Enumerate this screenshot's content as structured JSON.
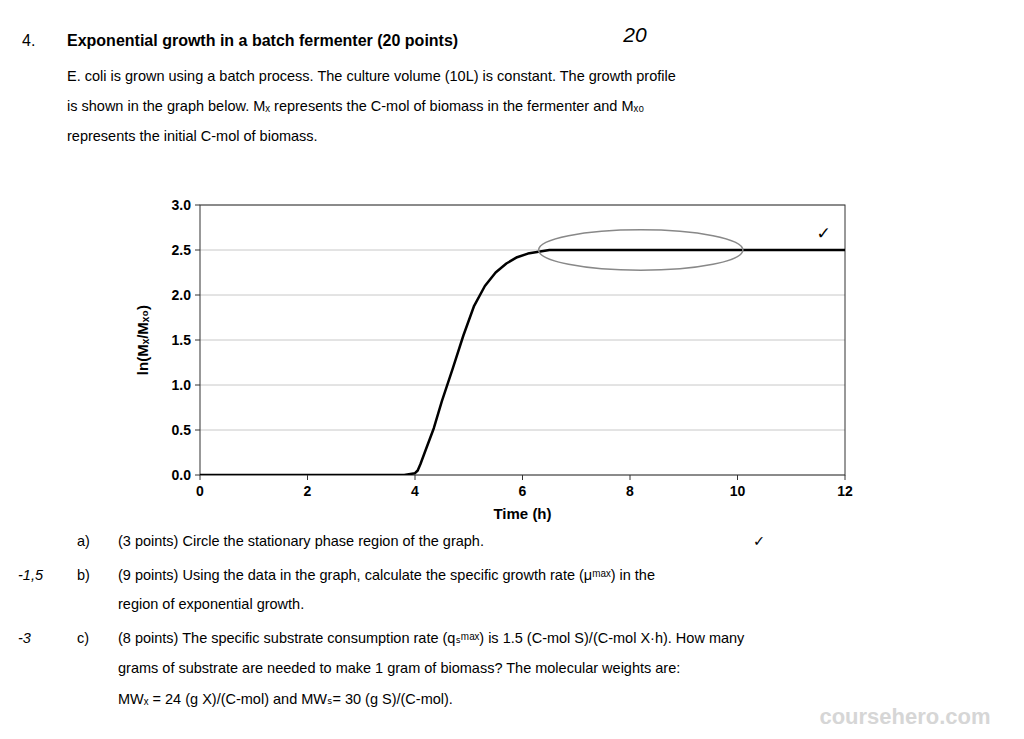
{
  "chart_data": {
    "type": "line",
    "title": "Exponential growth in a batch fermenter (20 points)",
    "xlabel": "Time (h)",
    "ylabel": "ln(Mₓ/Mₓ₀)",
    "x": [
      0,
      0.5,
      1.0,
      1.5,
      2.0,
      2.5,
      3.0,
      3.5,
      3.8,
      4.0,
      4.05,
      4.1,
      4.2,
      4.35,
      4.5,
      4.7,
      4.9,
      5.1,
      5.3,
      5.5,
      5.7,
      5.9,
      6.1,
      6.3,
      6.5,
      7.0,
      7.5,
      8.0,
      8.5,
      9.0,
      9.5,
      10.0,
      10.5,
      11.0,
      11.5,
      12.0
    ],
    "values": [
      0.0,
      0.0,
      0.0,
      0.0,
      0.0,
      0.0,
      0.0,
      0.0,
      0.0,
      0.02,
      0.05,
      0.12,
      0.28,
      0.52,
      0.82,
      1.18,
      1.55,
      1.88,
      2.1,
      2.25,
      2.35,
      2.42,
      2.46,
      2.48,
      2.5,
      2.5,
      2.5,
      2.5,
      2.5,
      2.5,
      2.5,
      2.5,
      2.5,
      2.5,
      2.5,
      2.5
    ],
    "color": "#000000",
    "xlim": [
      0,
      12
    ],
    "ylim": [
      0,
      3.0
    ],
    "xticks": [
      0,
      2,
      4,
      6,
      8,
      10,
      12
    ],
    "yticks": [
      {
        "value": 0.0,
        "label": "0.0"
      },
      0.5,
      {
        "value": 1.0,
        "label": "1.0"
      },
      1.5,
      {
        "value": 2.0,
        "label": "2.0"
      },
      2.5,
      {
        "value": 3.0,
        "label": "3.0"
      }
    ],
    "grid": "y",
    "regions": [
      {
        "x": 8.2,
        "y": 2.5,
        "width": 3.8,
        "height": 0.45
      }
    ],
    "point_annotations": [
      {
        "text": "✓",
        "x": 11.6,
        "y": 2.62
      }
    ],
    "annotations": [
      "20",
      "4.",
      "E. coli is grown using a batch process.  The culture volume (10L) is constant.  The growth profile",
      "is shown in the graph below.  Mₓ represents the C-mol of biomass in the fermenter and Mₓ₀",
      "represents the initial C-mol of biomass.",
      "a)",
      "(3 points) Circle the stationary phase region of the graph.",
      "✓",
      "-1,5",
      "b)",
      "(9 points) Using the data in the graph, calculate the specific growth rate (μᵐᵃˣ) in the",
      "region of exponential growth.",
      "-3",
      "c)",
      "(8 points) The specific substrate consumption rate (qₛᵐᵃˣ) is 1.5 (C-mol S)/(C-mol X·h).  How many",
      "grams of substrate are needed to make 1 gram of biomass?  The molecular weights are:",
      "MWₓ = 24 (g X)/(C-mol)   and  MWₛ= 30 (g S)/(C-mol).",
      "coursehero.com"
    ]
  }
}
